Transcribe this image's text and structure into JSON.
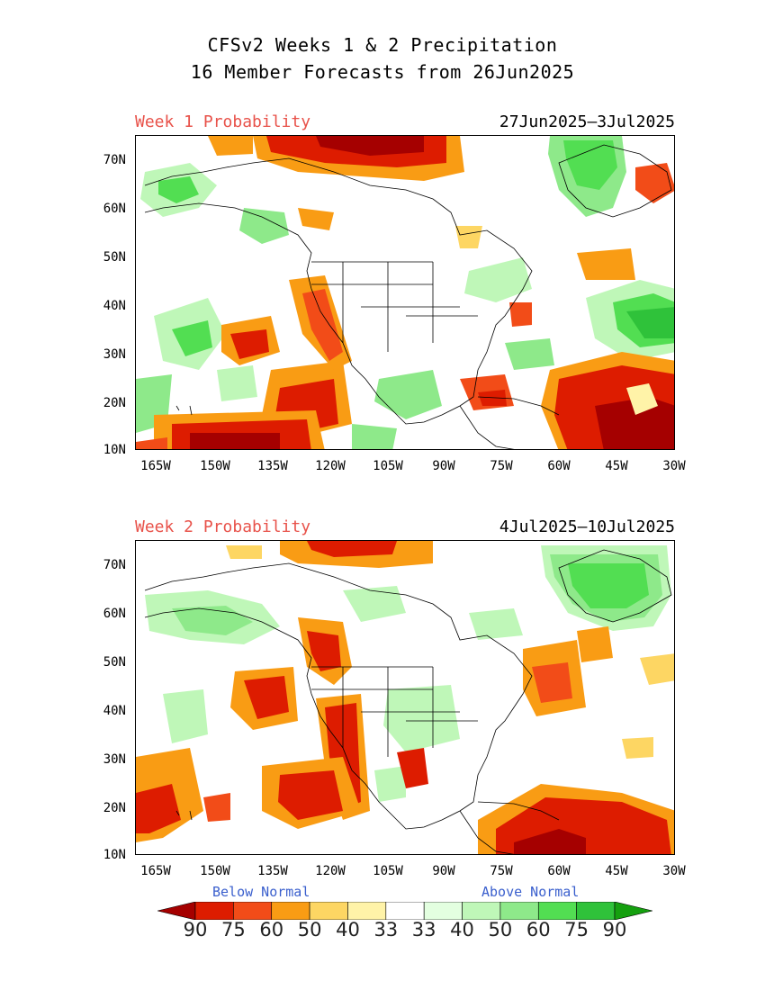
{
  "title_line1": "CFSv2 Weeks 1 & 2 Precipitation",
  "title_line2": "16 Member Forecasts from 26Jun2025",
  "panels": [
    {
      "label": "Week 1 Probability",
      "dates": "27Jun2025–3Jul2025"
    },
    {
      "label": "Week 2 Probability",
      "dates": "4Jul2025–10Jul2025"
    }
  ],
  "lat_labels": [
    "70N",
    "60N",
    "50N",
    "40N",
    "30N",
    "20N",
    "10N"
  ],
  "lon_labels": [
    "165W",
    "150W",
    "135W",
    "120W",
    "105W",
    "90W",
    "75W",
    "60W",
    "45W",
    "30W"
  ],
  "legend": {
    "below_label": "Below Normal",
    "above_label": "Above Normal",
    "values": [
      "90",
      "75",
      "60",
      "50",
      "40",
      "33",
      "33",
      "40",
      "50",
      "60",
      "75",
      "90"
    ],
    "colors": [
      "#a50000",
      "#dd1c00",
      "#f24c18",
      "#f99c14",
      "#fdd663",
      "#fff3a8",
      "#ffffff",
      "#e3ffe0",
      "#bff7b8",
      "#8ee98a",
      "#52de52",
      "#2fc23a",
      "#15a00f"
    ]
  }
}
